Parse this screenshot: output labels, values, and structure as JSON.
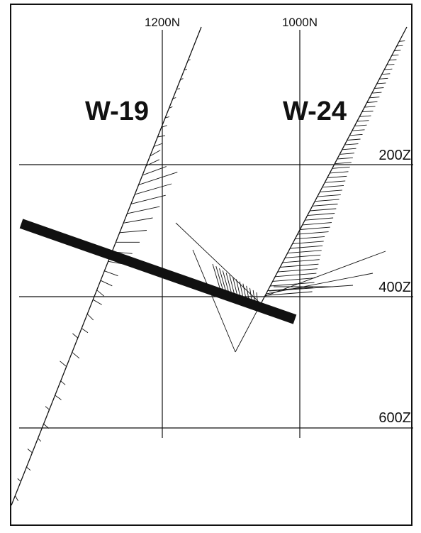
{
  "grid": {
    "northing_labels": [
      "1200N",
      "1000N"
    ],
    "depth_labels": [
      "200Z",
      "400Z",
      "600Z"
    ]
  },
  "wells": [
    {
      "name": "W-19"
    },
    {
      "name": "W-24"
    }
  ],
  "colors": {
    "ink": "#111111",
    "background": "#ffffff"
  }
}
